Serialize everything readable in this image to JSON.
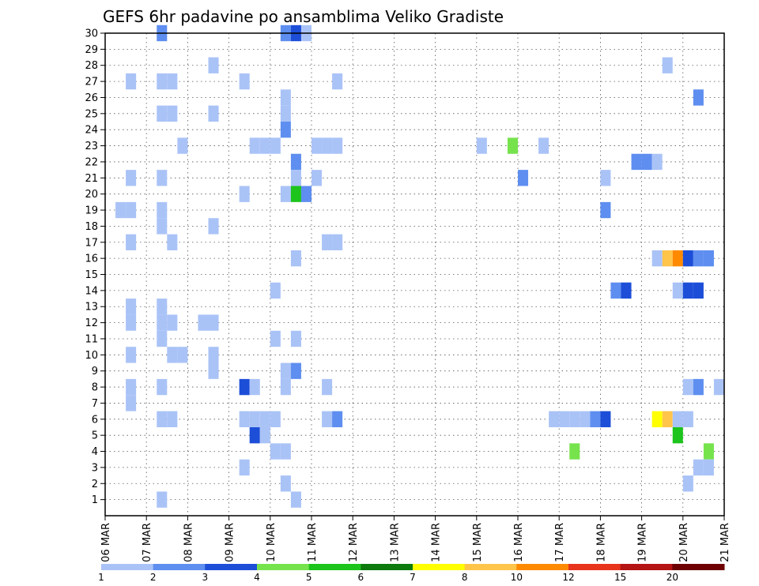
{
  "chart_data": {
    "type": "heatmap",
    "title": "GEFS 6hr padavine po ansamblima Veliko Gradiste",
    "xlabel": "",
    "ylabel": "",
    "x_tick_labels": [
      "06 MAR",
      "07 MAR",
      "08 MAR",
      "09 MAR",
      "10 MAR",
      "11 MAR",
      "12 MAR",
      "13 MAR",
      "14 MAR",
      "15 MAR",
      "16 MAR",
      "17 MAR",
      "18 MAR",
      "19 MAR",
      "20 MAR",
      "21 MAR"
    ],
    "y_tick_labels": [
      "1",
      "2",
      "3",
      "4",
      "5",
      "6",
      "7",
      "8",
      "9",
      "10",
      "11",
      "12",
      "13",
      "14",
      "15",
      "16",
      "17",
      "18",
      "19",
      "20",
      "21",
      "22",
      "23",
      "24",
      "25",
      "26",
      "27",
      "28",
      "29",
      "30"
    ],
    "x_range_days": [
      6,
      21
    ],
    "time_step_hours": 6,
    "member_range": [
      0,
      30
    ],
    "grid": true,
    "colorbar": {
      "position": "bottom",
      "labels": [
        "1",
        "2",
        "3",
        "4",
        "5",
        "6",
        "7",
        "8",
        "10",
        "12",
        "15",
        "20"
      ],
      "bounds": [
        1,
        2,
        3,
        4,
        5,
        6,
        7,
        8,
        10,
        12,
        15,
        20
      ],
      "colors": [
        "#aac3f7",
        "#5e8ef0",
        "#1c4ed8",
        "#76e34d",
        "#1cc41c",
        "#0c7a0c",
        "#ffff00",
        "#ffc44a",
        "#ff8a00",
        "#e8341c",
        "#b41414",
        "#6e0000"
      ]
    },
    "cell_value_convention": "each cell spans one 6h step starting at the given day; value is precipitation class (mm)",
    "cells": [
      {
        "m": 30,
        "d": 7.25,
        "v": 2
      },
      {
        "m": 30,
        "d": 10.25,
        "v": 2
      },
      {
        "m": 30,
        "d": 10.5,
        "v": 3
      },
      {
        "m": 30,
        "d": 10.75,
        "v": 1
      },
      {
        "m": 28,
        "d": 8.5,
        "v": 1
      },
      {
        "m": 28,
        "d": 19.5,
        "v": 1
      },
      {
        "m": 27,
        "d": 6.5,
        "v": 1
      },
      {
        "m": 27,
        "d": 7.25,
        "v": 1
      },
      {
        "m": 27,
        "d": 7.5,
        "v": 1
      },
      {
        "m": 27,
        "d": 9.25,
        "v": 1
      },
      {
        "m": 27,
        "d": 11.5,
        "v": 1
      },
      {
        "m": 26,
        "d": 10.25,
        "v": 1
      },
      {
        "m": 26,
        "d": 20.25,
        "v": 2
      },
      {
        "m": 25,
        "d": 7.25,
        "v": 1
      },
      {
        "m": 25,
        "d": 7.5,
        "v": 1
      },
      {
        "m": 25,
        "d": 8.5,
        "v": 1
      },
      {
        "m": 25,
        "d": 10.25,
        "v": 1
      },
      {
        "m": 24,
        "d": 10.25,
        "v": 2
      },
      {
        "m": 23,
        "d": 7.75,
        "v": 1
      },
      {
        "m": 23,
        "d": 9.5,
        "v": 1
      },
      {
        "m": 23,
        "d": 9.75,
        "v": 1
      },
      {
        "m": 23,
        "d": 10,
        "v": 1
      },
      {
        "m": 23,
        "d": 11,
        "v": 1
      },
      {
        "m": 23,
        "d": 11.25,
        "v": 1
      },
      {
        "m": 23,
        "d": 11.5,
        "v": 1
      },
      {
        "m": 23,
        "d": 15,
        "v": 1
      },
      {
        "m": 23,
        "d": 15.75,
        "v": 4
      },
      {
        "m": 23,
        "d": 16.5,
        "v": 1
      },
      {
        "m": 22,
        "d": 10.5,
        "v": 2
      },
      {
        "m": 22,
        "d": 18.75,
        "v": 2
      },
      {
        "m": 22,
        "d": 19,
        "v": 2
      },
      {
        "m": 22,
        "d": 19.25,
        "v": 1
      },
      {
        "m": 21,
        "d": 6.5,
        "v": 1
      },
      {
        "m": 21,
        "d": 7.25,
        "v": 1
      },
      {
        "m": 21,
        "d": 10.5,
        "v": 1
      },
      {
        "m": 21,
        "d": 11,
        "v": 1
      },
      {
        "m": 21,
        "d": 16,
        "v": 2
      },
      {
        "m": 21,
        "d": 18,
        "v": 1
      },
      {
        "m": 20,
        "d": 9.25,
        "v": 1
      },
      {
        "m": 20,
        "d": 10.25,
        "v": 1
      },
      {
        "m": 20,
        "d": 10.5,
        "v": 5
      },
      {
        "m": 20,
        "d": 10.75,
        "v": 2
      },
      {
        "m": 19,
        "d": 6.25,
        "v": 1
      },
      {
        "m": 19,
        "d": 6.5,
        "v": 1
      },
      {
        "m": 19,
        "d": 7.25,
        "v": 1
      },
      {
        "m": 19,
        "d": 18,
        "v": 2
      },
      {
        "m": 18,
        "d": 7.25,
        "v": 1
      },
      {
        "m": 18,
        "d": 8.5,
        "v": 1
      },
      {
        "m": 17,
        "d": 6.5,
        "v": 1
      },
      {
        "m": 17,
        "d": 7.5,
        "v": 1
      },
      {
        "m": 17,
        "d": 11.25,
        "v": 1
      },
      {
        "m": 17,
        "d": 11.5,
        "v": 1
      },
      {
        "m": 16,
        "d": 10.5,
        "v": 1
      },
      {
        "m": 16,
        "d": 19.25,
        "v": 1
      },
      {
        "m": 16,
        "d": 19.5,
        "v": 9
      },
      {
        "m": 16,
        "d": 19.75,
        "v": 10
      },
      {
        "m": 16,
        "d": 20,
        "v": 3
      },
      {
        "m": 16,
        "d": 20.25,
        "v": 2
      },
      {
        "m": 16,
        "d": 20.5,
        "v": 2
      },
      {
        "m": 14,
        "d": 10,
        "v": 1
      },
      {
        "m": 14,
        "d": 18.25,
        "v": 2
      },
      {
        "m": 14,
        "d": 18.5,
        "v": 3
      },
      {
        "m": 14,
        "d": 19.75,
        "v": 1
      },
      {
        "m": 14,
        "d": 20,
        "v": 3
      },
      {
        "m": 14,
        "d": 20.25,
        "v": 3
      },
      {
        "m": 13,
        "d": 6.5,
        "v": 1
      },
      {
        "m": 13,
        "d": 7.25,
        "v": 1
      },
      {
        "m": 12,
        "d": 6.5,
        "v": 1
      },
      {
        "m": 12,
        "d": 7.25,
        "v": 1
      },
      {
        "m": 12,
        "d": 7.5,
        "v": 1
      },
      {
        "m": 12,
        "d": 8.25,
        "v": 1
      },
      {
        "m": 12,
        "d": 8.5,
        "v": 1
      },
      {
        "m": 11,
        "d": 7.25,
        "v": 1
      },
      {
        "m": 11,
        "d": 10,
        "v": 1
      },
      {
        "m": 11,
        "d": 10.5,
        "v": 1
      },
      {
        "m": 10,
        "d": 6.5,
        "v": 1
      },
      {
        "m": 10,
        "d": 7.5,
        "v": 1
      },
      {
        "m": 10,
        "d": 7.75,
        "v": 1
      },
      {
        "m": 10,
        "d": 8.5,
        "v": 1
      },
      {
        "m": 9,
        "d": 8.5,
        "v": 1
      },
      {
        "m": 9,
        "d": 10.25,
        "v": 1
      },
      {
        "m": 9,
        "d": 10.5,
        "v": 2
      },
      {
        "m": 8,
        "d": 6.5,
        "v": 1
      },
      {
        "m": 8,
        "d": 7.25,
        "v": 1
      },
      {
        "m": 8,
        "d": 9.25,
        "v": 3
      },
      {
        "m": 8,
        "d": 9.5,
        "v": 1
      },
      {
        "m": 8,
        "d": 10.25,
        "v": 1
      },
      {
        "m": 8,
        "d": 11.25,
        "v": 1
      },
      {
        "m": 8,
        "d": 20,
        "v": 1
      },
      {
        "m": 8,
        "d": 20.25,
        "v": 2
      },
      {
        "m": 8,
        "d": 20.75,
        "v": 1
      },
      {
        "m": 7,
        "d": 6.5,
        "v": 1
      },
      {
        "m": 6,
        "d": 7.25,
        "v": 1
      },
      {
        "m": 6,
        "d": 7.5,
        "v": 1
      },
      {
        "m": 6,
        "d": 9.25,
        "v": 1
      },
      {
        "m": 6,
        "d": 9.5,
        "v": 1
      },
      {
        "m": 6,
        "d": 9.75,
        "v": 1
      },
      {
        "m": 6,
        "d": 10,
        "v": 1
      },
      {
        "m": 6,
        "d": 11.25,
        "v": 1
      },
      {
        "m": 6,
        "d": 11.5,
        "v": 2
      },
      {
        "m": 6,
        "d": 16.75,
        "v": 1
      },
      {
        "m": 6,
        "d": 17,
        "v": 1
      },
      {
        "m": 6,
        "d": 17.25,
        "v": 1
      },
      {
        "m": 6,
        "d": 17.5,
        "v": 1
      },
      {
        "m": 6,
        "d": 17.75,
        "v": 2
      },
      {
        "m": 6,
        "d": 18,
        "v": 3
      },
      {
        "m": 6,
        "d": 19.25,
        "v": 7
      },
      {
        "m": 6,
        "d": 19.5,
        "v": 9
      },
      {
        "m": 6,
        "d": 19.75,
        "v": 1
      },
      {
        "m": 6,
        "d": 20,
        "v": 1
      },
      {
        "m": 5,
        "d": 9.5,
        "v": 3
      },
      {
        "m": 5,
        "d": 9.75,
        "v": 1
      },
      {
        "m": 5,
        "d": 19.75,
        "v": 5
      },
      {
        "m": 4,
        "d": 10,
        "v": 1
      },
      {
        "m": 4,
        "d": 10.25,
        "v": 1
      },
      {
        "m": 4,
        "d": 17.25,
        "v": 4
      },
      {
        "m": 4,
        "d": 20.5,
        "v": 4
      },
      {
        "m": 3,
        "d": 9.25,
        "v": 1
      },
      {
        "m": 3,
        "d": 20.25,
        "v": 1
      },
      {
        "m": 3,
        "d": 20.5,
        "v": 1
      },
      {
        "m": 2,
        "d": 10.25,
        "v": 1
      },
      {
        "m": 2,
        "d": 20,
        "v": 1
      },
      {
        "m": 1,
        "d": 7.25,
        "v": 1
      },
      {
        "m": 1,
        "d": 10.5,
        "v": 1
      }
    ]
  }
}
